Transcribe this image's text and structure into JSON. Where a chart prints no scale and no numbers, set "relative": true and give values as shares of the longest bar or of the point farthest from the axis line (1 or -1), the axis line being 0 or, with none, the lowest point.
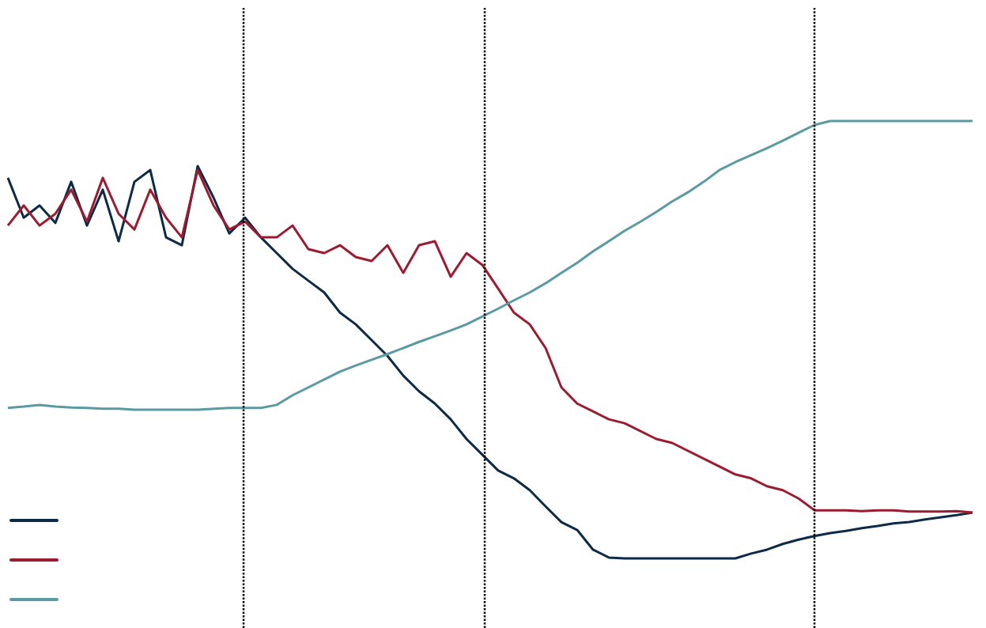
{
  "chart_data": {
    "type": "line",
    "relative": true,
    "grid": "x",
    "marker": "none",
    "line_style": "solid",
    "categories": [
      null,
      null,
      null,
      null,
      null,
      null,
      null,
      null,
      null,
      null,
      null,
      null,
      null,
      null,
      null,
      null,
      null,
      null,
      null,
      null,
      null,
      null,
      null,
      null,
      null,
      null,
      null,
      null,
      null,
      null,
      null,
      null,
      null,
      null,
      null,
      null,
      null,
      null,
      null,
      null,
      null,
      null,
      null,
      null,
      null,
      null,
      null,
      null,
      null,
      null,
      null,
      null,
      null,
      null,
      null,
      null,
      null,
      null,
      null,
      null,
      null,
      null
    ],
    "series": [
      {
        "color": "#0d2a47",
        "values": [
          0.87,
          0.779,
          0.807,
          0.767,
          0.861,
          0.761,
          0.843,
          0.725,
          0.861,
          0.888,
          0.734,
          0.716,
          0.897,
          0.825,
          0.743,
          0.779,
          0.734,
          0.698,
          0.662,
          0.635,
          0.608,
          0.562,
          0.535,
          0.499,
          0.463,
          0.418,
          0.382,
          0.354,
          0.318,
          0.273,
          0.237,
          0.201,
          0.183,
          0.156,
          0.119,
          0.083,
          0.065,
          0.02,
          0.002,
          0,
          0,
          0,
          0,
          0,
          0,
          0,
          0,
          0.011,
          0.02,
          0.033,
          0.043,
          0.051,
          0.058,
          0.063,
          0.069,
          0.074,
          0.08,
          0.083,
          0.089,
          0.094,
          0.099,
          0.105
        ]
      },
      {
        "color": "#9b1b30",
        "values": [
          0.761,
          0.807,
          0.761,
          0.788,
          0.843,
          0.77,
          0.87,
          0.788,
          0.752,
          0.843,
          0.779,
          0.734,
          0.888,
          0.807,
          0.752,
          0.77,
          0.734,
          0.734,
          0.761,
          0.707,
          0.698,
          0.716,
          0.689,
          0.68,
          0.716,
          0.653,
          0.716,
          0.725,
          0.644,
          0.698,
          0.671,
          0.617,
          0.562,
          0.535,
          0.481,
          0.391,
          0.354,
          0.336,
          0.318,
          0.309,
          0.291,
          0.273,
          0.264,
          0.246,
          0.228,
          0.21,
          0.192,
          0.183,
          0.165,
          0.156,
          0.137,
          0.11,
          0.11,
          0.11,
          0.108,
          0.11,
          0.11,
          0.107,
          0.107,
          0.107,
          0.108,
          0.105
        ]
      },
      {
        "color": "#5b9aa0",
        "values": [
          0.344,
          0.347,
          0.351,
          0.347,
          0.345,
          0.344,
          0.342,
          0.342,
          0.34,
          0.34,
          0.34,
          0.34,
          0.34,
          0.342,
          0.344,
          0.344,
          0.344,
          0.351,
          0.373,
          0.391,
          0.409,
          0.427,
          0.441,
          0.454,
          0.467,
          0.481,
          0.495,
          0.508,
          0.521,
          0.535,
          0.553,
          0.571,
          0.59,
          0.608,
          0.629,
          0.653,
          0.676,
          0.702,
          0.725,
          0.749,
          0.77,
          0.792,
          0.816,
          0.837,
          0.861,
          0.888,
          0.906,
          0.922,
          0.938,
          0.955,
          0.973,
          0.991,
          1,
          1,
          1,
          1,
          1,
          1,
          1,
          1,
          1,
          1
        ]
      }
    ]
  }
}
